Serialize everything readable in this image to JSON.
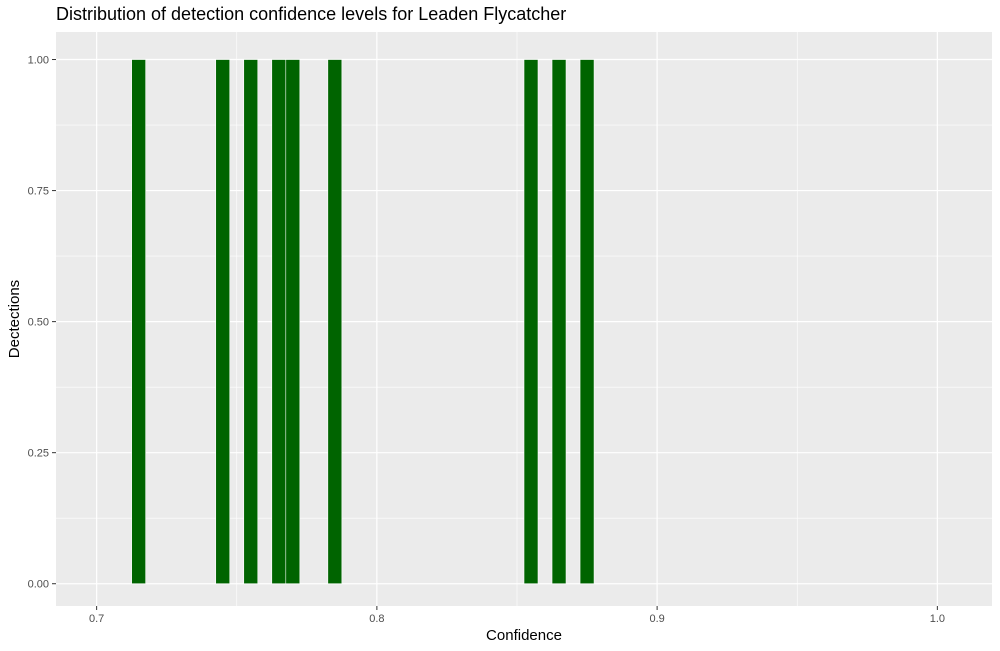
{
  "chart_data": {
    "type": "bar",
    "title": "Distribution of detection confidence levels for Leaden Flycatcher",
    "xlabel": "Confidence",
    "ylabel": "Dectections",
    "xlim": [
      0.6855,
      1.0195
    ],
    "ylim": [
      -0.0425,
      1.0525
    ],
    "x_ticks": [
      0.7,
      0.8,
      0.9,
      1.0
    ],
    "x_tick_labels": [
      "0.7",
      "0.8",
      "0.9",
      "1.0"
    ],
    "y_ticks": [
      0.0,
      0.25,
      0.5,
      0.75,
      1.0
    ],
    "y_tick_labels": [
      "0.00",
      "0.25",
      "0.50",
      "0.75",
      "1.00"
    ],
    "bin_width": 0.005,
    "bars": [
      {
        "x": 0.715,
        "value": 1
      },
      {
        "x": 0.745,
        "value": 1
      },
      {
        "x": 0.755,
        "value": 1
      },
      {
        "x": 0.765,
        "value": 1
      },
      {
        "x": 0.77,
        "value": 1
      },
      {
        "x": 0.785,
        "value": 1
      },
      {
        "x": 0.855,
        "value": 1
      },
      {
        "x": 0.865,
        "value": 1
      },
      {
        "x": 0.875,
        "value": 1
      }
    ],
    "colors": {
      "bar_fill": "#006400",
      "panel_background": "#EBEBEB",
      "grid": "#FFFFFF"
    },
    "grid": true,
    "legend": "none"
  }
}
